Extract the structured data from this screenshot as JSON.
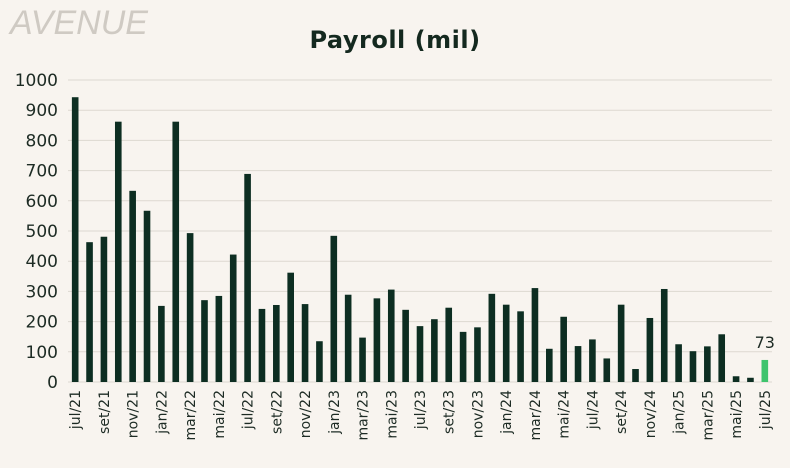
{
  "brand": {
    "logo_text": "AVENUE"
  },
  "colors": {
    "bar": "#0d2e22",
    "highlight": "#3ec46d",
    "grid": "#ddd8d1",
    "background": "#f8f4ef"
  },
  "chart_data": {
    "type": "bar",
    "title": "Payroll  (mil)",
    "xlabel": "",
    "ylabel": "",
    "ylim": [
      0,
      1000
    ],
    "yticks": [
      0,
      100,
      200,
      300,
      400,
      500,
      600,
      700,
      800,
      900,
      1000
    ],
    "grid": true,
    "categories": [
      "jul/21",
      "ago/21",
      "set/21",
      "out/21",
      "nov/21",
      "dez/21",
      "jan/22",
      "fev/22",
      "mar/22",
      "abr/22",
      "mai/22",
      "jun/22",
      "jul/22",
      "ago/22",
      "set/22",
      "out/22",
      "nov/22",
      "dez/22",
      "jan/23",
      "fev/23",
      "mar/23",
      "abr/23",
      "mai/23",
      "jun/23",
      "jul/23",
      "ago/23",
      "set/23",
      "out/23",
      "nov/23",
      "dez/23",
      "jan/24",
      "fev/24",
      "mar/24",
      "abr/24",
      "mai/24",
      "jun/24",
      "jul/24",
      "ago/24",
      "set/24",
      "out/24",
      "nov/24",
      "dez/24",
      "jan/25",
      "fev/25",
      "mar/25",
      "abr/25",
      "mai/25",
      "jun/25",
      "jul/25"
    ],
    "visible_tick_labels": [
      "jul/21",
      "set/21",
      "nov/21",
      "jan/22",
      "mar/22",
      "mai/22",
      "jul/22",
      "set/22",
      "nov/22",
      "jan/23",
      "mar/23",
      "mai/23",
      "jul/23",
      "set/23",
      "nov/23",
      "jan/24",
      "mar/24",
      "mai/24",
      "jul/24",
      "set/24",
      "nov/24",
      "jan/25",
      "mar/25",
      "mai/25",
      "jul/25"
    ],
    "values": [
      943,
      463,
      481,
      862,
      633,
      567,
      252,
      862,
      493,
      271,
      285,
      422,
      689,
      242,
      255,
      362,
      258,
      135,
      484,
      289,
      147,
      277,
      306,
      239,
      185,
      208,
      246,
      166,
      181,
      292,
      256,
      234,
      311,
      110,
      216,
      119,
      141,
      78,
      256,
      43,
      212,
      308,
      125,
      102,
      118,
      158,
      19,
      14,
      73
    ],
    "highlight_last": true,
    "annotations": [
      {
        "category": "jul/25",
        "text": "73"
      }
    ]
  }
}
